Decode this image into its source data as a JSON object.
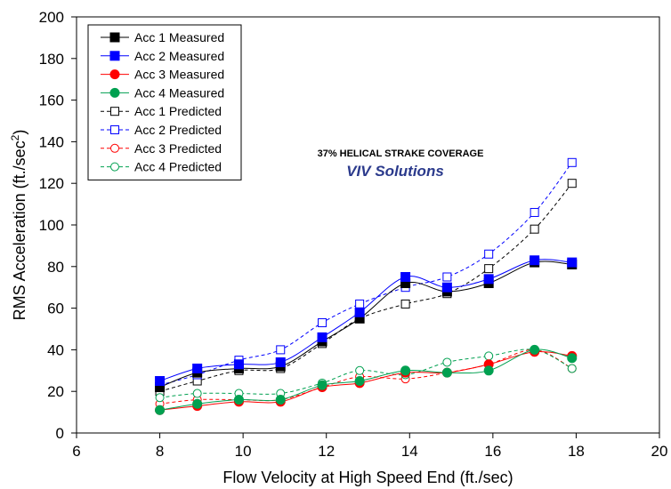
{
  "chart_data": {
    "type": "line",
    "xlabel": "Flow Velocity at High Speed End (ft./sec)",
    "ylabel": "RMS Acceleration (ft./sec",
    "ylabel_sup": "2",
    "ylabel_close": ")",
    "xlim": [
      6,
      20
    ],
    "ylim": [
      0,
      200
    ],
    "x_ticks": [
      "6",
      "8",
      "10",
      "12",
      "14",
      "16",
      "18",
      "20"
    ],
    "y_ticks": [
      "0",
      "20",
      "40",
      "60",
      "80",
      "100",
      "120",
      "140",
      "160",
      "180",
      "200"
    ],
    "annotation": "37% HELICAL STRAKE COVERAGE",
    "logo_text": "VIV Solutions",
    "legend_position": "top-left",
    "grid": false,
    "x": [
      8.0,
      8.9,
      9.9,
      10.9,
      11.9,
      12.8,
      13.9,
      14.9,
      15.9,
      17.0,
      17.9
    ],
    "series": [
      {
        "name": "Acc 1 Measured",
        "color": "#000000",
        "marker": "square",
        "filled": true,
        "dashed": false,
        "values": [
          22,
          29,
          31,
          32,
          44,
          55,
          72,
          68,
          72,
          82,
          81
        ]
      },
      {
        "name": "Acc 2 Measured",
        "color": "#0000ff",
        "marker": "square",
        "filled": true,
        "dashed": false,
        "values": [
          25,
          31,
          33,
          34,
          46,
          58,
          75,
          70,
          74,
          83,
          82
        ]
      },
      {
        "name": "Acc 3 Measured",
        "color": "#ff0000",
        "marker": "circle",
        "filled": true,
        "dashed": false,
        "values": [
          11,
          13,
          15,
          15,
          22,
          24,
          29,
          29,
          33,
          39,
          37
        ]
      },
      {
        "name": "Acc 4 Measured",
        "color": "#00a050",
        "marker": "circle",
        "filled": true,
        "dashed": false,
        "values": [
          11,
          14,
          16,
          16,
          23,
          25,
          30,
          29,
          30,
          40,
          36
        ]
      },
      {
        "name": "Acc 1 Predicted",
        "color": "#000000",
        "marker": "square",
        "filled": false,
        "dashed": true,
        "values": [
          20,
          25,
          30,
          31,
          43,
          55,
          62,
          67,
          79,
          98,
          120
        ]
      },
      {
        "name": "Acc 2 Predicted",
        "color": "#0000ff",
        "marker": "square",
        "filled": false,
        "dashed": true,
        "values": [
          23,
          28,
          35,
          40,
          53,
          62,
          70,
          75,
          86,
          106,
          130
        ]
      },
      {
        "name": "Acc 3 Predicted",
        "color": "#ff0000",
        "marker": "circle",
        "filled": false,
        "dashed": true,
        "values": [
          14,
          16,
          16,
          16,
          22,
          27,
          26,
          29,
          33,
          40,
          31
        ]
      },
      {
        "name": "Acc 4 Predicted",
        "color": "#00a050",
        "marker": "circle",
        "filled": false,
        "dashed": true,
        "values": [
          17,
          19,
          19,
          19,
          24,
          30,
          28,
          34,
          37,
          40,
          31
        ]
      }
    ]
  }
}
